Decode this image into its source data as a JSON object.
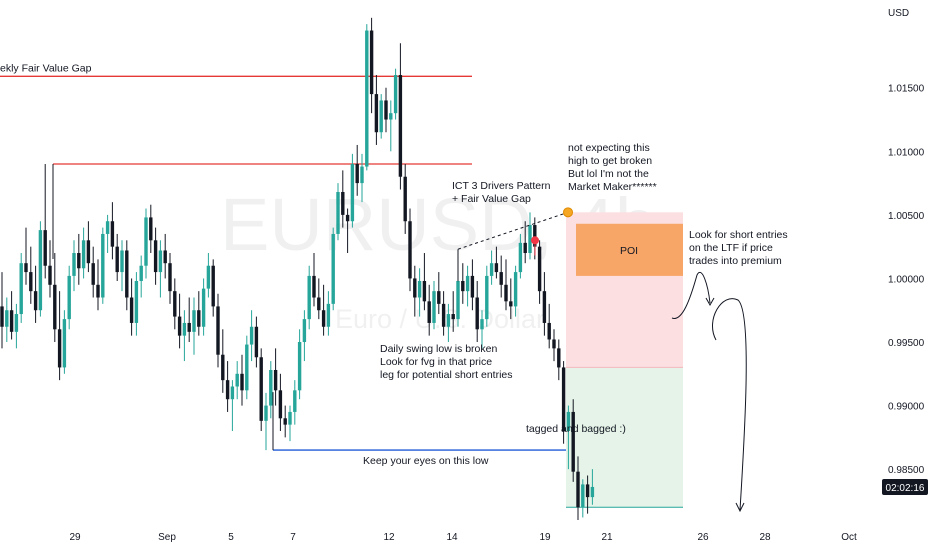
{
  "chart_data": {
    "type": "candlestick",
    "symbol_watermark": "EURUSD, 4h",
    "watermark_sub": "Euro / U.S. Dollar",
    "currency": "USD",
    "ylim": [
      0.981,
      1.0208
    ],
    "y_ticks": [
      "1.01500",
      "1.01000",
      "1.00500",
      "1.00000",
      "0.99500",
      "0.99000",
      "0.98500"
    ],
    "y_tick_values": [
      1.015,
      1.01,
      1.005,
      1.0,
      0.995,
      0.99,
      0.985
    ],
    "x_ticks": [
      "29",
      "Sep",
      "5",
      "7",
      "12",
      "14",
      "19",
      "21",
      "26",
      "28",
      "Oct"
    ],
    "time_label": "02:02:16",
    "price_label_value": 0.9836,
    "levels": [
      {
        "label": "ekly Fair Value Gap",
        "price": 1.0159
      },
      {
        "price": 1.009
      },
      {
        "label": "Keep your eyes on this low",
        "price": 0.9865
      }
    ],
    "zones": [
      {
        "label": "POI",
        "top": 1.0043,
        "bottom": 1.0002
      },
      {
        "kind": "stop",
        "top": 1.0052,
        "bottom": 0.993
      },
      {
        "kind": "target",
        "top": 0.993,
        "bottom": 0.982
      }
    ],
    "annotations": {
      "drivers": [
        "ICT 3 Drivers Pattern",
        "+ Fair Value Gap"
      ],
      "not_expecting": [
        "not expecting this",
        "high to get broken",
        "But lol I'm not the",
        "Market Maker******"
      ],
      "daily_swing": [
        "Daily swing low is broken",
        "Look for fvg in that price",
        "leg for potential short entries"
      ],
      "short_entries": [
        "Look for short entries",
        "on the LTF if price",
        "trades into premium"
      ],
      "tagged": "tagged and bagged :)"
    },
    "colors": {
      "up": "#26a69a",
      "down": "#131722",
      "red_level": "#e53935",
      "blue_level": "#1e5bd6",
      "poi": "#f7a668",
      "stop_zone": "#fbdfe1",
      "target_zone": "#e5f3e8"
    },
    "candles": [
      [
        0.9978,
        1.0005,
        0.9945,
        0.9962
      ],
      [
        0.9962,
        0.9985,
        0.995,
        0.9975
      ],
      [
        0.9975,
        0.999,
        0.9952,
        0.9958
      ],
      [
        0.9958,
        0.998,
        0.9945,
        0.9972
      ],
      [
        0.9972,
        1.002,
        0.9965,
        1.0012
      ],
      [
        1.0012,
        1.004,
        0.9995,
        1.0005
      ],
      [
        1.0005,
        1.0025,
        0.998,
        0.999
      ],
      [
        0.999,
        1.001,
        0.9965,
        0.9975
      ],
      [
        0.9975,
        1.0045,
        0.997,
        1.0038
      ],
      [
        1.0038,
        1.009,
        1.0,
        1.001
      ],
      [
        1.001,
        1.003,
        0.9985,
        0.9995
      ],
      [
        0.9995,
        1.002,
        0.995,
        0.996
      ],
      [
        0.996,
        0.999,
        0.992,
        0.993
      ],
      [
        0.993,
        0.9975,
        0.9925,
        0.9968
      ],
      [
        0.9968,
        1.001,
        0.996,
        1.0002
      ],
      [
        1.0002,
        1.003,
        0.999,
        1.002
      ],
      [
        1.002,
        1.0035,
        0.9995,
        1.0008
      ],
      [
        1.0008,
        1.004,
        1.0,
        1.003
      ],
      [
        1.003,
        1.0045,
        1.0005,
        1.0012
      ],
      [
        1.0012,
        1.0025,
        0.9985,
        0.9995
      ],
      [
        0.9995,
        1.0015,
        0.9975,
        0.9985
      ],
      [
        0.9985,
        1.004,
        0.998,
        1.0035
      ],
      [
        1.0035,
        1.005,
        1.002,
        1.0045
      ],
      [
        1.0045,
        1.006,
        1.0015,
        1.0025
      ],
      [
        1.0025,
        1.0035,
        0.9998,
        1.0005
      ],
      [
        1.0005,
        1.003,
        0.999,
        1.0022
      ],
      [
        1.0022,
        1.003,
        0.9975,
        0.9985
      ],
      [
        0.9985,
        1.0,
        0.9955,
        0.9965
      ],
      [
        0.9965,
        1.0005,
        0.9955,
        0.9998
      ],
      [
        0.9998,
        1.0018,
        0.9985,
        1.001
      ],
      [
        1.001,
        1.0055,
        1.0,
        1.0048
      ],
      [
        1.0048,
        1.0058,
        1.002,
        1.003
      ],
      [
        1.003,
        1.004,
        0.9995,
        1.0005
      ],
      [
        1.0005,
        1.003,
        0.9985,
        1.0022
      ],
      [
        1.0022,
        1.0035,
        1.0,
        1.0012
      ],
      [
        1.0012,
        1.002,
        0.998,
        0.999
      ],
      [
        0.999,
        1.0,
        0.996,
        0.997
      ],
      [
        0.997,
        0.9988,
        0.9945,
        0.9955
      ],
      [
        0.9955,
        0.9975,
        0.9935,
        0.9965
      ],
      [
        0.9965,
        0.9985,
        0.995,
        0.9958
      ],
      [
        0.9958,
        0.9985,
        0.994,
        0.9975
      ],
      [
        0.9975,
        0.999,
        0.9955,
        0.9962
      ],
      [
        0.9962,
        1.0,
        0.9955,
        0.9992
      ],
      [
        0.9992,
        1.002,
        0.9985,
        1.001
      ],
      [
        1.001,
        1.0015,
        0.997,
        0.9978
      ],
      [
        0.9978,
        0.9988,
        0.993,
        0.994
      ],
      [
        0.994,
        0.996,
        0.991,
        0.992
      ],
      [
        0.992,
        0.9935,
        0.9895,
        0.9905
      ],
      [
        0.9905,
        0.992,
        0.988,
        0.9915
      ],
      [
        0.9915,
        0.9935,
        0.9905,
        0.9925
      ],
      [
        0.9925,
        0.994,
        0.99,
        0.9912
      ],
      [
        0.9912,
        0.9955,
        0.9905,
        0.9948
      ],
      [
        0.9948,
        0.9975,
        0.9935,
        0.9962
      ],
      [
        0.9962,
        0.997,
        0.993,
        0.9938
      ],
      [
        0.9938,
        0.9945,
        0.988,
        0.9888
      ],
      [
        0.9888,
        0.991,
        0.9865,
        0.99
      ],
      [
        0.99,
        0.9935,
        0.989,
        0.9928
      ],
      [
        0.9928,
        0.9945,
        0.99,
        0.9912
      ],
      [
        0.9912,
        0.9925,
        0.988,
        0.989
      ],
      [
        0.989,
        0.99,
        0.9875,
        0.9885
      ],
      [
        0.9885,
        0.99,
        0.9872,
        0.9895
      ],
      [
        0.9895,
        0.992,
        0.9885,
        0.9912
      ],
      [
        0.9912,
        0.996,
        0.9905,
        0.995
      ],
      [
        0.995,
        0.9975,
        0.9935,
        0.9968
      ],
      [
        0.9968,
        1.001,
        0.996,
        1.0002
      ],
      [
        1.0002,
        1.002,
        0.9978,
        0.9985
      ],
      [
        0.9985,
        1.0,
        0.9968,
        0.9975
      ],
      [
        0.9975,
        0.9995,
        0.9955,
        0.9962
      ],
      [
        0.9962,
        0.999,
        0.9955,
        0.998
      ],
      [
        0.998,
        1.004,
        0.9975,
        1.0035
      ],
      [
        1.0035,
        1.0075,
        1.003,
        1.0068
      ],
      [
        1.0068,
        1.0085,
        1.004,
        1.005
      ],
      [
        1.005,
        1.0055,
        1.002,
        1.0045
      ],
      [
        1.0045,
        1.0098,
        1.004,
        1.009
      ],
      [
        1.009,
        1.0105,
        1.0065,
        1.0075
      ],
      [
        1.0075,
        1.0098,
        1.006,
        1.0088
      ],
      [
        1.0088,
        1.02,
        1.0085,
        1.0195
      ],
      [
        1.0195,
        1.0205,
        1.013,
        1.0145
      ],
      [
        1.0145,
        1.016,
        1.0105,
        1.0115
      ],
      [
        1.0115,
        1.0145,
        1.011,
        1.014
      ],
      [
        1.014,
        1.015,
        1.0115,
        1.0125
      ],
      [
        1.0125,
        1.014,
        1.01,
        1.013
      ],
      [
        1.013,
        1.0165,
        1.0125,
        1.016
      ],
      [
        1.016,
        1.0185,
        1.007,
        1.008
      ],
      [
        1.008,
        1.009,
        1.0035,
        1.0045
      ],
      [
        1.0045,
        1.0055,
        0.999,
        1.0
      ],
      [
        1.0,
        1.001,
        0.997,
        0.9985
      ],
      [
        0.9985,
        1.0008,
        0.997,
        0.9998
      ],
      [
        0.9998,
        1.002,
        0.9975,
        0.9982
      ],
      [
        0.9982,
        0.9995,
        0.9955,
        0.9965
      ],
      [
        0.9965,
        0.9998,
        0.996,
        0.999
      ],
      [
        0.999,
        1.0005,
        0.9972,
        0.998
      ],
      [
        0.998,
        0.999,
        0.9955,
        0.9962
      ],
      [
        0.9962,
        0.998,
        0.995,
        0.9972
      ],
      [
        0.9972,
        0.999,
        0.9958,
        0.9968
      ],
      [
        0.9968,
        1.0005,
        0.9962,
        0.9998
      ],
      [
        0.9998,
        1.0012,
        0.998,
        0.999
      ],
      [
        0.999,
        1.001,
        0.9978,
        1.0002
      ],
      [
        1.0002,
        1.0015,
        0.9975,
        0.9985
      ],
      [
        0.9985,
        0.9998,
        0.995,
        0.996
      ],
      [
        0.996,
        0.9975,
        0.9945,
        0.9968
      ],
      [
        0.9968,
        1.001,
        0.9962,
        1.0002
      ],
      [
        1.0002,
        1.0022,
        0.9995,
        1.0012
      ],
      [
        1.0012,
        1.0025,
        1.0,
        1.0005
      ],
      [
        1.0005,
        1.0018,
        0.9985,
        0.9995
      ],
      [
        0.9995,
        1.0015,
        0.9975,
        0.9982
      ],
      [
        0.9982,
        1.0,
        0.9968,
        0.9978
      ],
      [
        0.9978,
        1.001,
        0.997,
        1.0005
      ],
      [
        1.0005,
        1.0035,
        1.0,
        1.0028
      ],
      [
        1.0028,
        1.0045,
        1.0012,
        1.002
      ],
      [
        1.002,
        1.0052,
        1.0015,
        1.0042
      ],
      [
        1.0042,
        1.0048,
        1.0015,
        1.0025
      ],
      [
        1.0025,
        1.003,
        0.998,
        0.999
      ],
      [
        0.999,
        1.0005,
        0.9955,
        0.9965
      ],
      [
        0.9965,
        0.998,
        0.9945,
        0.9952
      ],
      [
        0.9952,
        0.996,
        0.9935,
        0.9945
      ],
      [
        0.9945,
        0.9952,
        0.992,
        0.993
      ],
      [
        0.993,
        0.9935,
        0.987,
        0.988
      ],
      [
        0.988,
        0.99,
        0.985,
        0.9895
      ],
      [
        0.9895,
        0.9905,
        0.984,
        0.9848
      ],
      [
        0.9848,
        0.986,
        0.981,
        0.982
      ],
      [
        0.982,
        0.9842,
        0.9812,
        0.9838
      ],
      [
        0.9838,
        0.9845,
        0.9815,
        0.9828
      ],
      [
        0.9828,
        0.985,
        0.9822,
        0.9836
      ]
    ]
  }
}
